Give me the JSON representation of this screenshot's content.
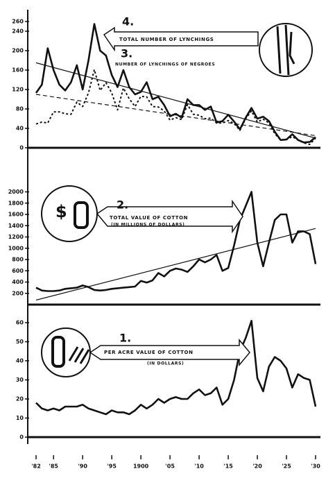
{
  "chart_data": [
    {
      "type": "line",
      "annotations": [
        "4.",
        "TOTAL NUMBER OF LYNCHINGS",
        "3.",
        "NUMBER OF LYNCHINGS OF NEGROES"
      ],
      "x": [
        1882,
        1883,
        1884,
        1885,
        1886,
        1887,
        1888,
        1889,
        1890,
        1891,
        1892,
        1893,
        1894,
        1895,
        1896,
        1897,
        1898,
        1899,
        1900,
        1901,
        1902,
        1903,
        1904,
        1905,
        1906,
        1907,
        1908,
        1909,
        1910,
        1911,
        1912,
        1913,
        1914,
        1915,
        1916,
        1917,
        1918,
        1919,
        1920,
        1921,
        1922,
        1923,
        1924,
        1925,
        1926,
        1927,
        1928,
        1929,
        1930
      ],
      "series": [
        {
          "color": "#111111",
          "dashed": false,
          "values": [
            113,
            130,
            205,
            160,
            130,
            118,
            135,
            170,
            120,
            180,
            255,
            200,
            190,
            150,
            125,
            160,
            125,
            110,
            115,
            135,
            100,
            105,
            88,
            65,
            70,
            62,
            100,
            88,
            88,
            78,
            85,
            52,
            55,
            68,
            54,
            38,
            62,
            82,
            60,
            64,
            55,
            33,
            16,
            17,
            28,
            16,
            11,
            12,
            22
          ]
        },
        {
          "color": "#111111",
          "dashed": true,
          "values": [
            49,
            53,
            51,
            74,
            74,
            70,
            69,
            94,
            85,
            113,
            161,
            118,
            134,
            113,
            78,
            123,
            101,
            85,
            106,
            105,
            85,
            84,
            76,
            57,
            62,
            58,
            89,
            69,
            67,
            60,
            61,
            51,
            51,
            56,
            50,
            36,
            60,
            76,
            53,
            59,
            51,
            29,
            16,
            17,
            23,
            16,
            10,
            7,
            20
          ]
        }
      ],
      "trend_lines": [
        {
          "dashed": false,
          "x": [
            1882,
            1930
          ],
          "values": [
            175,
            20
          ]
        },
        {
          "dashed": true,
          "x": [
            1882,
            1930
          ],
          "values": [
            110,
            25
          ]
        }
      ],
      "xlim": [
        1882,
        1930
      ],
      "ylim": [
        0,
        260
      ],
      "yticks": [
        0,
        40,
        80,
        120,
        160,
        200,
        240,
        260
      ]
    },
    {
      "type": "line",
      "annotations": [
        "$",
        "2.",
        "TOTAL VALUE OF COTTON",
        "(IN MILLIONS OF DOLLARS)"
      ],
      "x": [
        1882,
        1883,
        1884,
        1885,
        1886,
        1887,
        1888,
        1889,
        1890,
        1891,
        1892,
        1893,
        1894,
        1895,
        1896,
        1897,
        1898,
        1899,
        1900,
        1901,
        1902,
        1903,
        1904,
        1905,
        1906,
        1907,
        1908,
        1909,
        1910,
        1911,
        1912,
        1913,
        1914,
        1915,
        1916,
        1917,
        1918,
        1919,
        1920,
        1921,
        1922,
        1923,
        1924,
        1925,
        1926,
        1927,
        1928,
        1929,
        1930
      ],
      "series": [
        {
          "color": "#111111",
          "dashed": false,
          "values": [
            300,
            250,
            240,
            240,
            250,
            280,
            290,
            300,
            340,
            310,
            260,
            250,
            260,
            280,
            290,
            300,
            310,
            320,
            420,
            390,
            430,
            560,
            500,
            600,
            640,
            620,
            580,
            680,
            800,
            750,
            800,
            880,
            600,
            650,
            1050,
            1500,
            1750,
            2000,
            1100,
            680,
            1100,
            1500,
            1600,
            1600,
            1100,
            1300,
            1300,
            1250,
            720
          ]
        }
      ],
      "trend_lines": [
        {
          "dashed": false,
          "x": [
            1882,
            1930
          ],
          "values": [
            80,
            1350
          ]
        }
      ],
      "xlim": [
        1882,
        1930
      ],
      "ylim": [
        0,
        2000
      ],
      "yticks": [
        200,
        400,
        600,
        800,
        1000,
        1200,
        1400,
        1600,
        1800,
        2000
      ]
    },
    {
      "type": "line",
      "annotations": [
        "1.",
        "PER ACRE VALUE OF COTTON",
        "(IN DOLLARS)"
      ],
      "x": [
        1882,
        1883,
        1884,
        1885,
        1886,
        1887,
        1888,
        1889,
        1890,
        1891,
        1892,
        1893,
        1894,
        1895,
        1896,
        1897,
        1898,
        1899,
        1900,
        1901,
        1902,
        1903,
        1904,
        1905,
        1906,
        1907,
        1908,
        1909,
        1910,
        1911,
        1912,
        1913,
        1914,
        1915,
        1916,
        1917,
        1918,
        1919,
        1920,
        1921,
        1922,
        1923,
        1924,
        1925,
        1926,
        1927,
        1928,
        1929,
        1930
      ],
      "series": [
        {
          "color": "#111111",
          "dashed": false,
          "values": [
            18,
            15,
            14,
            15,
            14,
            16,
            16,
            16,
            17,
            15,
            14,
            13,
            12,
            14,
            13,
            13,
            12,
            14,
            17,
            15,
            17,
            20,
            18,
            20,
            21,
            20,
            20,
            23,
            25,
            22,
            23,
            26,
            17,
            20,
            30,
            45,
            52,
            61,
            31,
            24,
            37,
            42,
            40,
            36,
            26,
            33,
            31,
            30,
            16
          ]
        }
      ],
      "trend_lines": [],
      "xlim": [
        1882,
        1930
      ],
      "xticks": [
        {
          "value": 1882,
          "label": "'82"
        },
        {
          "value": 1885,
          "label": "'85"
        },
        {
          "value": 1890,
          "label": "'90"
        },
        {
          "value": 1895,
          "label": "'95"
        },
        1900,
        {
          "value": 1905,
          "label": "'05"
        },
        {
          "value": 1910,
          "label": "'10"
        },
        {
          "value": 1915,
          "label": "'15"
        },
        {
          "value": 1920,
          "label": "'20"
        },
        {
          "value": 1925,
          "label": "'25"
        },
        {
          "value": 1930,
          "label": "'30"
        }
      ],
      "ylim": [
        0,
        60
      ],
      "yticks": [
        0,
        10,
        20,
        30,
        40,
        50,
        60
      ]
    }
  ]
}
